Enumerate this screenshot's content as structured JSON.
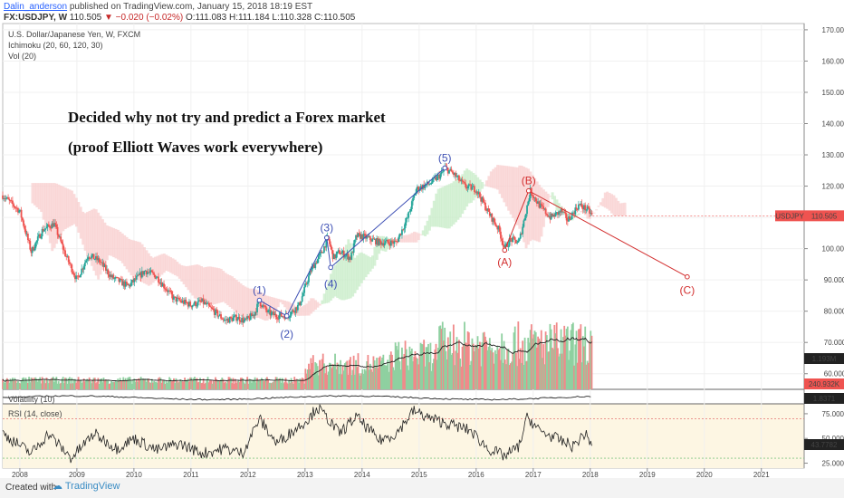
{
  "header": {
    "author": "Dalin_anderson",
    "published": "published on TradingView.com, January 15, 2018 18:19 EST",
    "symbol": "FX:USDJPY, W",
    "last": "110.505",
    "change": "−0.020 (−0.02%)",
    "open": "O:111.083",
    "high": "H:111.184",
    "low": "L:110.328",
    "close": "C:110.505"
  },
  "legend": {
    "instrument": "U.S. Dollar/Japanese Yen, W, FXCM",
    "ichimoku": "Ichimoku (20, 60, 120, 30)",
    "vol": "Vol (20)",
    "volatility": "Volatility (10)",
    "rsi": "RSI (14, close)"
  },
  "annotations": {
    "line1": "Decided why not try and predict a Forex market",
    "line2": "(proof Elliott Waves work everywhere)"
  },
  "footer": {
    "created": "Created with",
    "brand": "TradingView"
  },
  "colors": {
    "up": "#26a69a",
    "down": "#ef5350",
    "impulse": "#3f51b5",
    "corrective": "#d32f2f",
    "price_tag": "#ef5350"
  },
  "chart_data": [
    {
      "type": "candlestick",
      "title": "U.S. Dollar/Japanese Yen, W, FXCM",
      "price_tag": {
        "label": "USDJPY",
        "value": "110.505"
      },
      "x_ticks": [
        "2008",
        "2009",
        "2010",
        "2011",
        "2012",
        "2013",
        "2014",
        "2015",
        "2016",
        "2017",
        "2018",
        "2019",
        "2020",
        "2021"
      ],
      "y_ticks": [
        "170.000",
        "160.000",
        "150.000",
        "140.000",
        "130.000",
        "120.000",
        "110.000",
        "100.000",
        "90.000",
        "80.000",
        "70.000",
        "60.000"
      ],
      "ylim": [
        55,
        172
      ],
      "price_path": [
        [
          2007.7,
          117
        ],
        [
          2008.0,
          112
        ],
        [
          2008.2,
          99
        ],
        [
          2008.4,
          106
        ],
        [
          2008.6,
          108
        ],
        [
          2008.8,
          98
        ],
        [
          2009.0,
          90
        ],
        [
          2009.2,
          98
        ],
        [
          2009.4,
          96
        ],
        [
          2009.6,
          91
        ],
        [
          2009.9,
          88
        ],
        [
          2010.2,
          93
        ],
        [
          2010.4,
          91
        ],
        [
          2010.7,
          84
        ],
        [
          2011.0,
          82
        ],
        [
          2011.2,
          83
        ],
        [
          2011.6,
          77
        ],
        [
          2011.8,
          78
        ],
        [
          2011.95,
          76.8
        ],
        [
          2012.1,
          79
        ],
        [
          2012.2,
          83
        ],
        [
          2012.35,
          79.5
        ],
        [
          2012.5,
          78.5
        ],
        [
          2012.7,
          78.6
        ],
        [
          2012.9,
          82
        ],
        [
          2013.1,
          93
        ],
        [
          2013.3,
          99
        ],
        [
          2013.4,
          103.5
        ],
        [
          2013.5,
          97
        ],
        [
          2013.6,
          99
        ],
        [
          2013.8,
          97
        ],
        [
          2013.9,
          104
        ],
        [
          2014.0,
          104
        ],
        [
          2014.3,
          102
        ],
        [
          2014.6,
          102
        ],
        [
          2014.8,
          110
        ],
        [
          2014.95,
          119
        ],
        [
          2015.2,
          121
        ],
        [
          2015.4,
          124
        ],
        [
          2015.45,
          125.8
        ],
        [
          2015.6,
          124
        ],
        [
          2015.8,
          120
        ],
        [
          2016.0,
          119
        ],
        [
          2016.2,
          112
        ],
        [
          2016.4,
          106
        ],
        [
          2016.5,
          100
        ],
        [
          2016.6,
          103
        ],
        [
          2016.75,
          102
        ],
        [
          2016.85,
          110
        ],
        [
          2016.95,
          118.5
        ],
        [
          2017.1,
          114
        ],
        [
          2017.3,
          110
        ],
        [
          2017.5,
          112
        ],
        [
          2017.6,
          109
        ],
        [
          2017.8,
          114
        ],
        [
          2017.95,
          112.5
        ],
        [
          2018.04,
          110.5
        ]
      ],
      "elliott_impulse": [
        {
          "label": "(1)",
          "x": 2012.2,
          "y": 83.5
        },
        {
          "label": "(2)",
          "x": 2012.68,
          "y": 78.5
        },
        {
          "label": "(3)",
          "x": 2013.38,
          "y": 103.5
        },
        {
          "label": "(4)",
          "x": 2013.45,
          "y": 94
        },
        {
          "label": "(5)",
          "x": 2015.45,
          "y": 125.8
        }
      ],
      "elliott_corrective": [
        {
          "label": "(A)",
          "x": 2016.5,
          "y": 99.5
        },
        {
          "label": "(B)",
          "x": 2016.92,
          "y": 118.5
        },
        {
          "label": "(C)",
          "x": 2019.7,
          "y": 91
        }
      ],
      "volume_tag": "1.193M",
      "volume_tag2": "240.932K"
    },
    {
      "type": "line",
      "title": "Volatility (10)",
      "value_tag": "1.8371"
    },
    {
      "type": "line",
      "title": "RSI (14, close)",
      "y_ticks": [
        "75.0000",
        "50.0000",
        "25.0000"
      ],
      "ylim": [
        20,
        85
      ],
      "levels": [
        70,
        30
      ],
      "value_tag": "43.7782",
      "series": [
        [
          2007.7,
          55
        ],
        [
          2008.2,
          35
        ],
        [
          2008.5,
          55
        ],
        [
          2008.9,
          30
        ],
        [
          2009.3,
          55
        ],
        [
          2009.7,
          40
        ],
        [
          2010.0,
          50
        ],
        [
          2010.4,
          38
        ],
        [
          2010.8,
          45
        ],
        [
          2011.2,
          35
        ],
        [
          2011.6,
          40
        ],
        [
          2011.9,
          35
        ],
        [
          2012.2,
          70
        ],
        [
          2012.5,
          45
        ],
        [
          2012.8,
          58
        ],
        [
          2013.1,
          72
        ],
        [
          2013.2,
          82
        ],
        [
          2013.4,
          70
        ],
        [
          2013.6,
          55
        ],
        [
          2013.9,
          72
        ],
        [
          2014.3,
          48
        ],
        [
          2014.6,
          55
        ],
        [
          2014.9,
          78
        ],
        [
          2015.2,
          70
        ],
        [
          2015.5,
          65
        ],
        [
          2015.9,
          58
        ],
        [
          2016.2,
          40
        ],
        [
          2016.5,
          32
        ],
        [
          2016.75,
          42
        ],
        [
          2016.9,
          72
        ],
        [
          2017.1,
          58
        ],
        [
          2017.4,
          50
        ],
        [
          2017.7,
          42
        ],
        [
          2017.9,
          55
        ],
        [
          2018.04,
          43.8
        ]
      ]
    }
  ]
}
